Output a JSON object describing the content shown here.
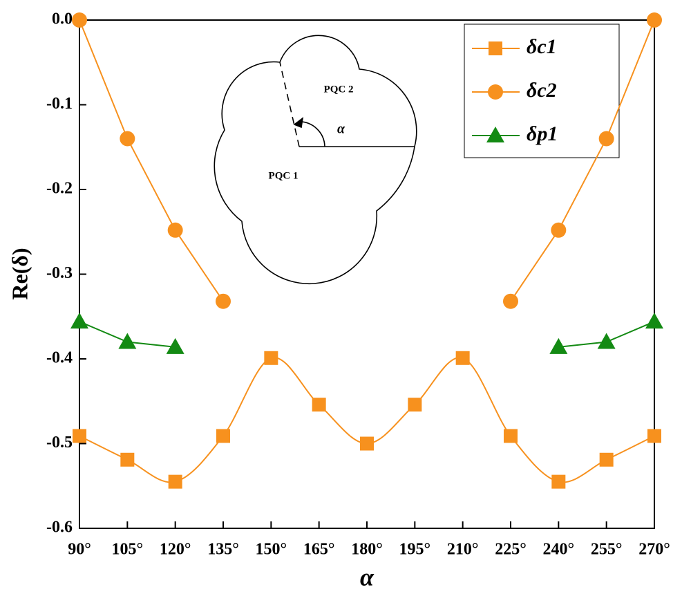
{
  "chart_data": {
    "type": "line",
    "x_label": "α",
    "y_label": "Re(δ)",
    "x": [
      90,
      105,
      120,
      135,
      150,
      165,
      180,
      195,
      210,
      225,
      240,
      255,
      270
    ],
    "series": [
      {
        "name": "δc1",
        "color": "#f7911e",
        "marker": "square",
        "smooth": true,
        "values": [
          -0.491,
          -0.519,
          -0.545,
          -0.491,
          -0.399,
          -0.454,
          -0.5,
          -0.454,
          -0.399,
          -0.491,
          -0.545,
          -0.519,
          -0.491
        ]
      },
      {
        "name": "δc2",
        "color": "#f7911e",
        "marker": "circle",
        "smooth": false,
        "values": [
          0,
          -0.14,
          -0.248,
          -0.332,
          null,
          null,
          null,
          null,
          null,
          -0.332,
          -0.248,
          -0.14,
          0
        ]
      },
      {
        "name": "δp1",
        "color": "#138a13",
        "marker": "triangle",
        "smooth": false,
        "values": [
          -0.356,
          -0.38,
          -0.386,
          null,
          null,
          null,
          null,
          null,
          null,
          null,
          -0.386,
          -0.38,
          -0.356
        ]
      }
    ],
    "xlim": [
      90,
      270
    ],
    "xticks": [
      {
        "value": 90,
        "label": "90°"
      },
      {
        "value": 105,
        "label": "105°"
      },
      {
        "value": 120,
        "label": "120°"
      },
      {
        "value": 135,
        "label": "135°"
      },
      {
        "value": 150,
        "label": "150°"
      },
      {
        "value": 165,
        "label": "165°"
      },
      {
        "value": 180,
        "label": "180°"
      },
      {
        "value": 195,
        "label": "195°"
      },
      {
        "value": 210,
        "label": "210°"
      },
      {
        "value": 225,
        "label": "225°"
      },
      {
        "value": 240,
        "label": "240°"
      },
      {
        "value": 255,
        "label": "255°"
      },
      {
        "value": 270,
        "label": "270°"
      }
    ],
    "ylim": [
      -0.6,
      0
    ],
    "yticks": [
      {
        "value": 0,
        "label": "0.0"
      },
      -0.1,
      -0.2,
      -0.3,
      -0.4,
      -0.5,
      -0.6
    ],
    "legend": "top-right",
    "annotations": [
      "PQC 2",
      "PQC 1",
      "α"
    ]
  }
}
